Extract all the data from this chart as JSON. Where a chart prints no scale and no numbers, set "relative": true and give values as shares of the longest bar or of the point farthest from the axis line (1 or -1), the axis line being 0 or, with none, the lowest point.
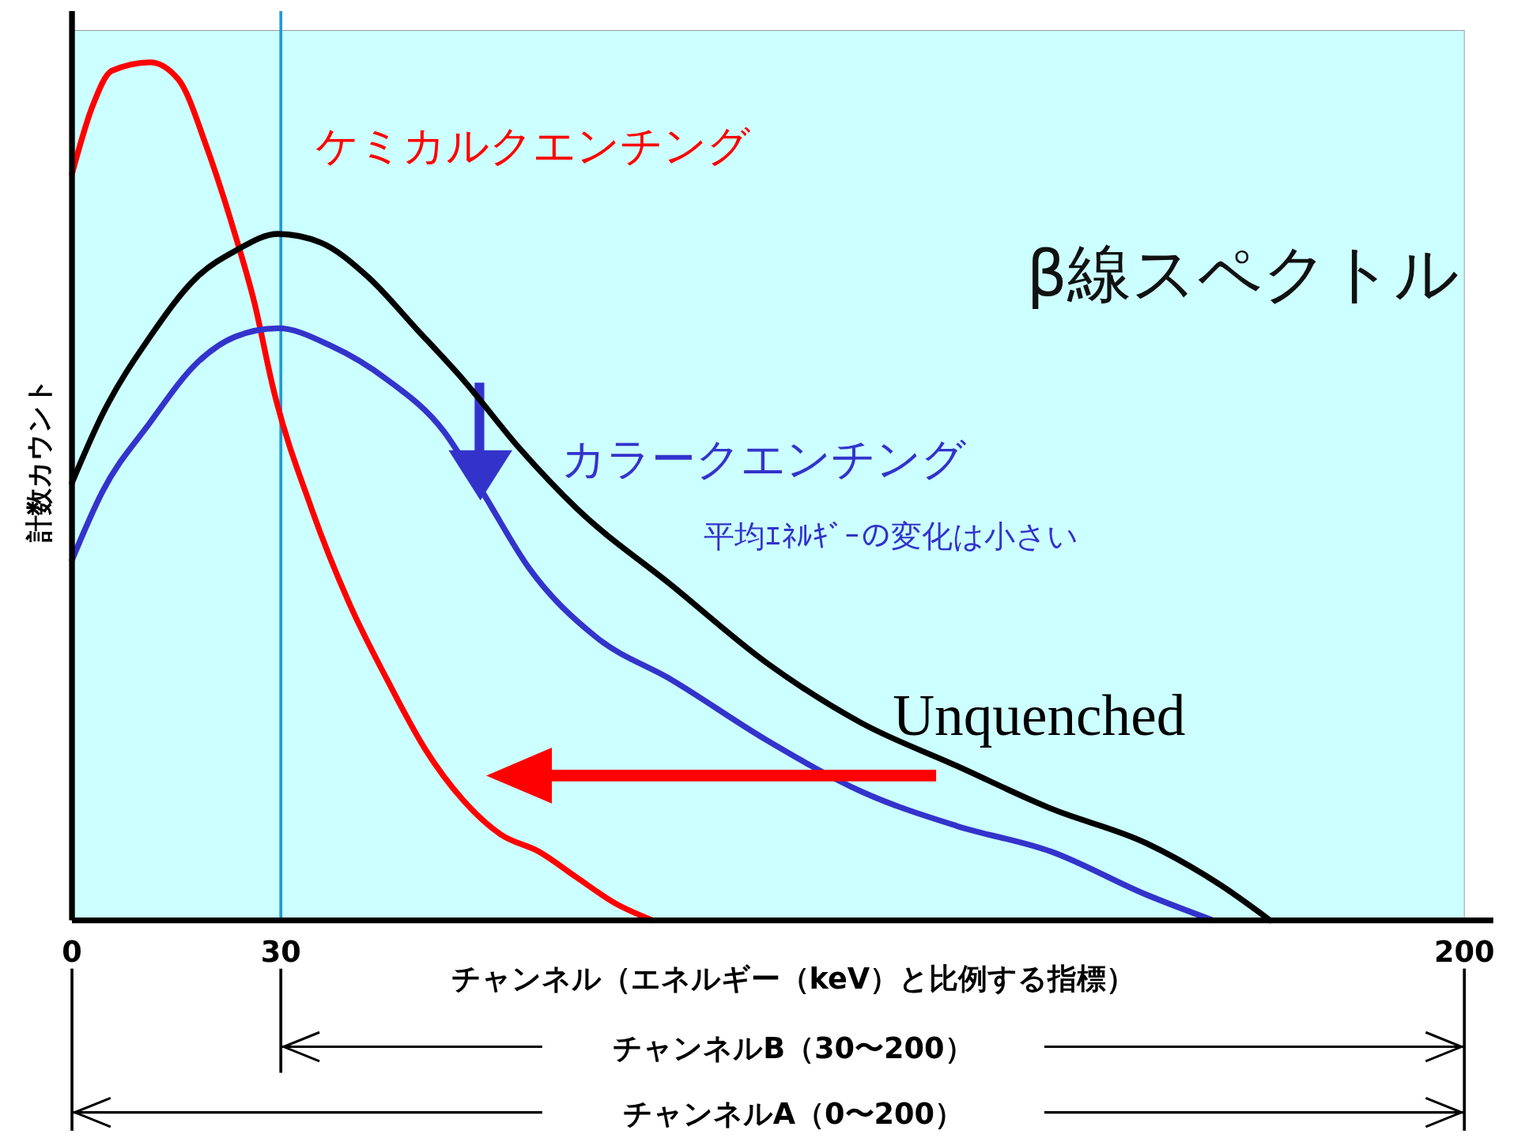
{
  "chart_data": {
    "type": "line",
    "title": "β線スペクトル",
    "xlabel": "チャンネル（エネルギー（keV）と比例する指標）",
    "ylabel": "計数カウント",
    "relative": true,
    "xlim": [
      0,
      200
    ],
    "xticks": [
      0,
      30,
      200
    ],
    "marker": "none",
    "line_style": "solid",
    "ref_lines": [
      {
        "axis": "x",
        "value": 30,
        "color": "#1e9ad6"
      }
    ],
    "annotations": [
      "平均ｴﾈﾙｷﾞｰの変化は小さい",
      "チャンネルB（30〜200）",
      "チャンネルA（0〜200）"
    ],
    "series": [
      {
        "name": "ケミカルクエンチング",
        "color": "#ff0000",
        "x": [
          0,
          3.0,
          5.7,
          11.2,
          15.3,
          19.4,
          23.4,
          26.2,
          28.9,
          34.4,
          39.8,
          45.3,
          50.7,
          56.2,
          61.6,
          67.1,
          72.5,
          78.0,
          83.4
        ],
        "values": [
          0.87,
          0.95,
          0.99,
          1,
          0.98,
          0.9,
          0.8,
          0.72,
          0.62,
          0.48,
          0.37,
          0.28,
          0.2,
          0.14,
          0.1,
          0.08,
          0.05,
          0.02,
          0
        ]
      },
      {
        "name": "Unquenched",
        "color": "#000000",
        "x": [
          0,
          4.4,
          11.2,
          18.0,
          23.4,
          29.6,
          35.7,
          42.5,
          49.4,
          56.2,
          64.3,
          72.5,
          86.2,
          99.8,
          113.4,
          127.1,
          140.7,
          154.3,
          165.2,
          172.1
        ],
        "values": [
          0.51,
          0.59,
          0.68,
          0.75,
          0.78,
          0.8,
          0.79,
          0.75,
          0.69,
          0.63,
          0.55,
          0.48,
          0.39,
          0.3,
          0.23,
          0.18,
          0.13,
          0.09,
          0.04,
          0
        ]
      },
      {
        "name": "カラークエンチング",
        "color": "#3333cc",
        "x": [
          0,
          4.4,
          11.2,
          18.0,
          23.4,
          29.6,
          37.1,
          45.3,
          53.4,
          58.9,
          65.7,
          75.3,
          86.2,
          99.8,
          113.4,
          127.1,
          140.7,
          154.3,
          163.9
        ],
        "values": [
          0.42,
          0.5,
          0.58,
          0.65,
          0.68,
          0.69,
          0.67,
          0.63,
          0.57,
          0.5,
          0.41,
          0.33,
          0.28,
          0.21,
          0.15,
          0.11,
          0.08,
          0.03,
          0
        ]
      }
    ]
  }
}
